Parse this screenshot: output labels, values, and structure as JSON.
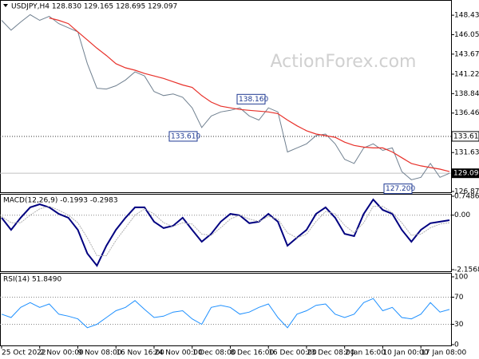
{
  "chart_data": [
    {
      "type": "line",
      "title": "USDJPY,H4 128.830 129.165 128.695 129.097",
      "watermark": "ActionForex.com",
      "ylim": [
        126.87,
        150.0
      ],
      "yticks": [
        {
          "value": 148.43,
          "label": "148.430"
        },
        {
          "value": 146.05,
          "label": "146.050"
        },
        {
          "value": 143.67,
          "label": "143.670"
        },
        {
          "value": 141.22,
          "label": "141.220"
        },
        {
          "value": 138.84,
          "label": "138.840"
        },
        {
          "value": 136.46,
          "label": "136.460"
        },
        {
          "value": 131.63,
          "label": "131.630"
        },
        {
          "value": 126.87,
          "label": "126.870"
        }
      ],
      "level_line": {
        "value": 133.61,
        "label": "133.610"
      },
      "last_price": {
        "value": 129.097,
        "label": "129.097"
      },
      "annotations": [
        {
          "value": 138.16,
          "label": "138.160"
        },
        {
          "value": 133.61,
          "label": "133.610"
        },
        {
          "value": 127.2,
          "label": "127.200"
        }
      ],
      "series": [
        {
          "color": "#708090",
          "values": [
            147.8,
            146.6,
            147.6,
            148.5,
            147.8,
            148.3,
            147.4,
            146.9,
            146.4,
            142.5,
            139.5,
            139.4,
            139.8,
            140.5,
            141.5,
            141.0,
            139.1,
            138.6,
            138.8,
            138.4,
            137.1,
            134.7,
            136.1,
            136.6,
            136.8,
            137.1,
            136.1,
            135.6,
            137.1,
            136.6,
            131.7,
            132.2,
            132.7,
            133.7,
            133.9,
            132.7,
            130.8,
            130.3,
            132.2,
            132.7,
            131.9,
            132.2,
            129.3,
            128.3,
            128.6,
            130.3,
            128.6,
            129.1
          ]
        },
        {
          "color": "#e8312a",
          "values": [
            null,
            null,
            null,
            null,
            null,
            148.1,
            147.8,
            147.4,
            146.4,
            145.4,
            144.4,
            143.5,
            142.5,
            142.0,
            141.7,
            141.3,
            141.0,
            140.7,
            140.3,
            139.9,
            139.6,
            138.6,
            137.8,
            137.3,
            137.1,
            136.9,
            136.8,
            136.7,
            136.6,
            136.4,
            135.6,
            134.9,
            134.3,
            133.9,
            133.7,
            133.5,
            132.9,
            132.5,
            132.3,
            132.2,
            132.2,
            131.7,
            131.0,
            130.3,
            130.0,
            129.8,
            129.6,
            129.3
          ]
        }
      ]
    },
    {
      "type": "line",
      "title": "MACD(12,26,9) -0.1993 -0.2983",
      "ylim": [
        -2.1568,
        0.7486
      ],
      "yticks": [
        0.7486,
        {
          "value": 0,
          "label": "0.00"
        },
        -2.1568
      ],
      "series": [
        {
          "color": "#000080",
          "values": [
            -0.1,
            -0.58,
            -0.1,
            0.31,
            0.43,
            0.31,
            0.05,
            -0.1,
            -0.58,
            -1.52,
            -2.0,
            -1.21,
            -0.58,
            -0.1,
            0.31,
            0.31,
            -0.26,
            -0.51,
            -0.42,
            -0.1,
            -0.58,
            -1.05,
            -0.74,
            -0.26,
            0.05,
            -0.01,
            -0.32,
            -0.26,
            0.05,
            -0.26,
            -1.21,
            -0.89,
            -0.58,
            0.05,
            0.31,
            -0.1,
            -0.74,
            -0.83,
            0.05,
            0.62,
            0.21,
            0.05,
            -0.58,
            -1.05,
            -0.58,
            -0.32,
            -0.26,
            -0.1993
          ]
        },
        {
          "color": "#b0b0b0",
          "values": [
            -0.05,
            -0.3,
            -0.3,
            0.0,
            0.25,
            0.35,
            0.2,
            0.0,
            -0.3,
            -0.9,
            -1.6,
            -1.6,
            -1.0,
            -0.5,
            0.0,
            0.25,
            0.05,
            -0.3,
            -0.45,
            -0.3,
            -0.35,
            -0.75,
            -0.8,
            -0.5,
            -0.15,
            0.0,
            -0.15,
            -0.25,
            -0.05,
            -0.15,
            -0.7,
            -0.9,
            -0.75,
            -0.25,
            0.15,
            0.05,
            -0.4,
            -0.7,
            -0.3,
            0.35,
            0.35,
            0.1,
            -0.3,
            -0.8,
            -0.75,
            -0.5,
            -0.35,
            -0.2983
          ]
        }
      ]
    },
    {
      "type": "line",
      "title": "RSI(14) 51.8490",
      "ylim": [
        0,
        100
      ],
      "yticks": [
        100,
        70,
        30,
        0
      ],
      "levels": [
        70,
        30
      ],
      "categories": [
        "25 Oct 2022",
        null,
        null,
        null,
        "2 Nov 00:00",
        null,
        null,
        null,
        "9 Nov 08:00",
        null,
        null,
        null,
        "16 Nov 16:00",
        null,
        null,
        null,
        "24 Nov 00:00",
        null,
        null,
        null,
        "1 Dec 08:00",
        null,
        null,
        null,
        "8 Dec 16:00",
        null,
        null,
        null,
        "16 Dec 00:00",
        null,
        null,
        null,
        "23 Dec 08:00",
        null,
        null,
        null,
        "2 Jan 16:00",
        null,
        null,
        null,
        "10 Jan 00:00",
        null,
        null,
        null,
        "17 Jan 08:00",
        null,
        null,
        null
      ],
      "series": [
        {
          "color": "#1e90ff",
          "values": [
            45,
            40,
            55,
            62,
            55,
            60,
            45,
            42,
            38,
            25,
            30,
            40,
            50,
            55,
            65,
            52,
            40,
            42,
            48,
            50,
            38,
            30,
            55,
            58,
            55,
            45,
            48,
            55,
            60,
            40,
            25,
            45,
            50,
            58,
            60,
            45,
            40,
            45,
            62,
            68,
            50,
            55,
            40,
            38,
            45,
            62,
            48,
            51.849
          ]
        }
      ]
    }
  ]
}
